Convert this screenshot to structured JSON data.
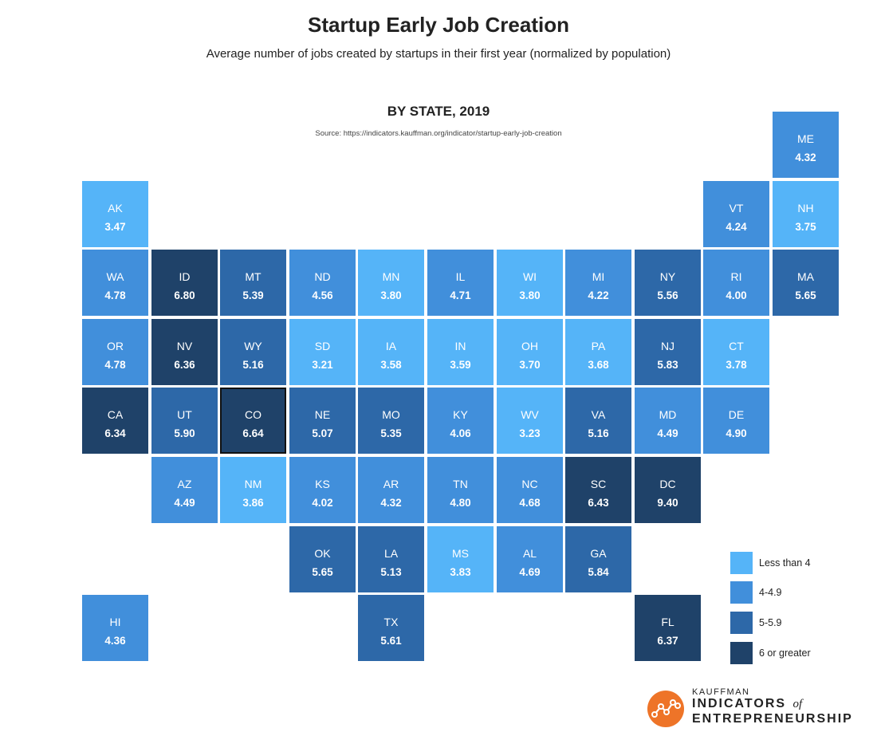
{
  "title": "Startup Early Job Creation",
  "subtitle": "Average number of jobs created by startups in their first year (normalized by population)",
  "heading": "BY STATE, 2019",
  "source": "Source: https://indicators.kauffman.org/indicator/startup-early-job-creation",
  "chart_data": {
    "type": "tile-map",
    "title": "Startup Early Job Creation",
    "subtitle": "Average number of jobs created by startups in their first year (normalized by population)",
    "bins": [
      {
        "label": "Less than 4",
        "color": "#55b4f8"
      },
      {
        "label": "4-4.9",
        "color": "#418fdb"
      },
      {
        "label": "5-5.9",
        "color": "#2d68a8"
      },
      {
        "label": "6 or greater",
        "color": "#1f4269"
      }
    ],
    "states": [
      {
        "abbr": "ME",
        "value": "4.32",
        "bin": 1,
        "row": 0,
        "col": 10
      },
      {
        "abbr": "AK",
        "value": "3.47",
        "bin": 0,
        "row": 1,
        "col": 0
      },
      {
        "abbr": "VT",
        "value": "4.24",
        "bin": 1,
        "row": 1,
        "col": 9
      },
      {
        "abbr": "NH",
        "value": "3.75",
        "bin": 0,
        "row": 1,
        "col": 10
      },
      {
        "abbr": "WA",
        "value": "4.78",
        "bin": 1,
        "row": 2,
        "col": 0
      },
      {
        "abbr": "ID",
        "value": "6.80",
        "bin": 3,
        "row": 2,
        "col": 1
      },
      {
        "abbr": "MT",
        "value": "5.39",
        "bin": 2,
        "row": 2,
        "col": 2
      },
      {
        "abbr": "ND",
        "value": "4.56",
        "bin": 1,
        "row": 2,
        "col": 3
      },
      {
        "abbr": "MN",
        "value": "3.80",
        "bin": 0,
        "row": 2,
        "col": 4
      },
      {
        "abbr": "IL",
        "value": "4.71",
        "bin": 1,
        "row": 2,
        "col": 5
      },
      {
        "abbr": "WI",
        "value": "3.80",
        "bin": 0,
        "row": 2,
        "col": 6
      },
      {
        "abbr": "MI",
        "value": "4.22",
        "bin": 1,
        "row": 2,
        "col": 7
      },
      {
        "abbr": "NY",
        "value": "5.56",
        "bin": 2,
        "row": 2,
        "col": 8
      },
      {
        "abbr": "RI",
        "value": "4.00",
        "bin": 1,
        "row": 2,
        "col": 9
      },
      {
        "abbr": "MA",
        "value": "5.65",
        "bin": 2,
        "row": 2,
        "col": 10
      },
      {
        "abbr": "OR",
        "value": "4.78",
        "bin": 1,
        "row": 3,
        "col": 0
      },
      {
        "abbr": "NV",
        "value": "6.36",
        "bin": 3,
        "row": 3,
        "col": 1
      },
      {
        "abbr": "WY",
        "value": "5.16",
        "bin": 2,
        "row": 3,
        "col": 2
      },
      {
        "abbr": "SD",
        "value": "3.21",
        "bin": 0,
        "row": 3,
        "col": 3
      },
      {
        "abbr": "IA",
        "value": "3.58",
        "bin": 0,
        "row": 3,
        "col": 4
      },
      {
        "abbr": "IN",
        "value": "3.59",
        "bin": 0,
        "row": 3,
        "col": 5
      },
      {
        "abbr": "OH",
        "value": "3.70",
        "bin": 0,
        "row": 3,
        "col": 6
      },
      {
        "abbr": "PA",
        "value": "3.68",
        "bin": 0,
        "row": 3,
        "col": 7
      },
      {
        "abbr": "NJ",
        "value": "5.83",
        "bin": 2,
        "row": 3,
        "col": 8
      },
      {
        "abbr": "CT",
        "value": "3.78",
        "bin": 0,
        "row": 3,
        "col": 9
      },
      {
        "abbr": "CA",
        "value": "6.34",
        "bin": 3,
        "row": 4,
        "col": 0
      },
      {
        "abbr": "UT",
        "value": "5.90",
        "bin": 2,
        "row": 4,
        "col": 1
      },
      {
        "abbr": "CO",
        "value": "6.64",
        "bin": 3,
        "row": 4,
        "col": 2,
        "selected": true
      },
      {
        "abbr": "NE",
        "value": "5.07",
        "bin": 2,
        "row": 4,
        "col": 3
      },
      {
        "abbr": "MO",
        "value": "5.35",
        "bin": 2,
        "row": 4,
        "col": 4
      },
      {
        "abbr": "KY",
        "value": "4.06",
        "bin": 1,
        "row": 4,
        "col": 5
      },
      {
        "abbr": "WV",
        "value": "3.23",
        "bin": 0,
        "row": 4,
        "col": 6
      },
      {
        "abbr": "VA",
        "value": "5.16",
        "bin": 2,
        "row": 4,
        "col": 7
      },
      {
        "abbr": "MD",
        "value": "4.49",
        "bin": 1,
        "row": 4,
        "col": 8
      },
      {
        "abbr": "DE",
        "value": "4.90",
        "bin": 1,
        "row": 4,
        "col": 9
      },
      {
        "abbr": "AZ",
        "value": "4.49",
        "bin": 1,
        "row": 5,
        "col": 1
      },
      {
        "abbr": "NM",
        "value": "3.86",
        "bin": 0,
        "row": 5,
        "col": 2
      },
      {
        "abbr": "KS",
        "value": "4.02",
        "bin": 1,
        "row": 5,
        "col": 3
      },
      {
        "abbr": "AR",
        "value": "4.32",
        "bin": 1,
        "row": 5,
        "col": 4
      },
      {
        "abbr": "TN",
        "value": "4.80",
        "bin": 1,
        "row": 5,
        "col": 5
      },
      {
        "abbr": "NC",
        "value": "4.68",
        "bin": 1,
        "row": 5,
        "col": 6
      },
      {
        "abbr": "SC",
        "value": "6.43",
        "bin": 3,
        "row": 5,
        "col": 7
      },
      {
        "abbr": "DC",
        "value": "9.40",
        "bin": 3,
        "row": 5,
        "col": 8
      },
      {
        "abbr": "OK",
        "value": "5.65",
        "bin": 2,
        "row": 6,
        "col": 3
      },
      {
        "abbr": "LA",
        "value": "5.13",
        "bin": 2,
        "row": 6,
        "col": 4
      },
      {
        "abbr": "MS",
        "value": "3.83",
        "bin": 0,
        "row": 6,
        "col": 5
      },
      {
        "abbr": "AL",
        "value": "4.69",
        "bin": 1,
        "row": 6,
        "col": 6
      },
      {
        "abbr": "GA",
        "value": "5.84",
        "bin": 2,
        "row": 6,
        "col": 7
      },
      {
        "abbr": "HI",
        "value": "4.36",
        "bin": 1,
        "row": 7,
        "col": 0
      },
      {
        "abbr": "TX",
        "value": "5.61",
        "bin": 2,
        "row": 7,
        "col": 4
      },
      {
        "abbr": "FL",
        "value": "6.37",
        "bin": 3,
        "row": 7,
        "col": 8
      }
    ]
  },
  "legend": {
    "items": [
      {
        "label": "Less than 4",
        "color": "#55b4f8"
      },
      {
        "label": "4-4.9",
        "color": "#418fdb"
      },
      {
        "label": "5-5.9",
        "color": "#2d68a8"
      },
      {
        "label": "6 or greater",
        "color": "#1f4269"
      }
    ]
  },
  "logo": {
    "small": "KAUFFMAN",
    "line1": "INDICATORS",
    "of": "of",
    "line2": "ENTREPRENEURSHIP",
    "icon": "line-chart-circle-icon",
    "color": "#ee7428"
  }
}
